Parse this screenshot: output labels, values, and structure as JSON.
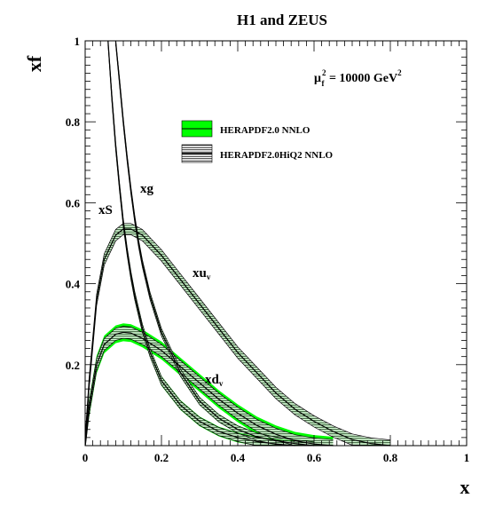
{
  "chart_data": {
    "type": "line",
    "title": "H1 and ZEUS",
    "xlabel": "x",
    "ylabel": "xf",
    "xlim": [
      0,
      1
    ],
    "ylim": [
      0,
      1
    ],
    "x_ticks": [
      "0",
      "0.2",
      "0.4",
      "0.6",
      "0.8",
      "1"
    ],
    "y_ticks": [
      "0.2",
      "0.4",
      "0.6",
      "0.8",
      "1"
    ],
    "annotation": {
      "mu": "μ",
      "sup": "2",
      "sub": "f",
      "rest": " = 10000 GeV",
      "unit_sup": "2"
    },
    "legend_position": "top-center",
    "legend": [
      {
        "name": "HERAPDF2.0 NNLO",
        "style": "green-band",
        "color": "#00ff00"
      },
      {
        "name": "HERAPDF2.0HiQ2 NNLO",
        "style": "hatched-band",
        "color": "#000000"
      }
    ],
    "curve_labels": {
      "xg": "xg",
      "xS": "xS",
      "xuv": "xu",
      "xuv_sub": "v",
      "xdv": "xd",
      "xdv_sub": "v"
    },
    "series": [
      {
        "name": "xu_v",
        "x": [
          0.001,
          0.01,
          0.03,
          0.05,
          0.08,
          0.1,
          0.12,
          0.15,
          0.2,
          0.25,
          0.3,
          0.35,
          0.4,
          0.45,
          0.5,
          0.55,
          0.6,
          0.65,
          0.7,
          0.75,
          0.8
        ],
        "y": [
          0.02,
          0.15,
          0.36,
          0.46,
          0.52,
          0.535,
          0.535,
          0.52,
          0.47,
          0.41,
          0.35,
          0.29,
          0.23,
          0.18,
          0.13,
          0.09,
          0.06,
          0.035,
          0.015,
          0.005,
          0.0
        ],
        "band_green": 0.012,
        "band_hatched": 0.014
      },
      {
        "name": "xd_v",
        "x": [
          0.001,
          0.01,
          0.03,
          0.05,
          0.08,
          0.1,
          0.12,
          0.15,
          0.2,
          0.25,
          0.3,
          0.35,
          0.4,
          0.45,
          0.5,
          0.55,
          0.6,
          0.65
        ],
        "y": [
          0.01,
          0.09,
          0.2,
          0.25,
          0.275,
          0.28,
          0.278,
          0.265,
          0.235,
          0.195,
          0.155,
          0.115,
          0.08,
          0.05,
          0.028,
          0.012,
          0.004,
          0.0
        ],
        "band_green": 0.022,
        "band_hatched": 0.015
      },
      {
        "name": "xg",
        "x": [
          0.08,
          0.09,
          0.1,
          0.11,
          0.12,
          0.13,
          0.14,
          0.15,
          0.17,
          0.2,
          0.25,
          0.3,
          0.35,
          0.4,
          0.45,
          0.5,
          0.55,
          0.6
        ],
        "y": [
          1.0,
          0.9,
          0.8,
          0.71,
          0.63,
          0.56,
          0.5,
          0.45,
          0.37,
          0.28,
          0.18,
          0.11,
          0.068,
          0.04,
          0.022,
          0.012,
          0.005,
          0.0
        ],
        "band_green": 0.01,
        "band_hatched": 0.009
      },
      {
        "name": "xS",
        "x": [
          0.06,
          0.07,
          0.08,
          0.09,
          0.1,
          0.11,
          0.12,
          0.13,
          0.15,
          0.17,
          0.2,
          0.25,
          0.3,
          0.35,
          0.4,
          0.45,
          0.5,
          0.55
        ],
        "y": [
          1.0,
          0.86,
          0.74,
          0.64,
          0.55,
          0.48,
          0.42,
          0.37,
          0.29,
          0.23,
          0.16,
          0.1,
          0.06,
          0.035,
          0.02,
          0.01,
          0.004,
          0.0
        ],
        "band_green": 0.012,
        "band_hatched": 0.01
      }
    ]
  }
}
